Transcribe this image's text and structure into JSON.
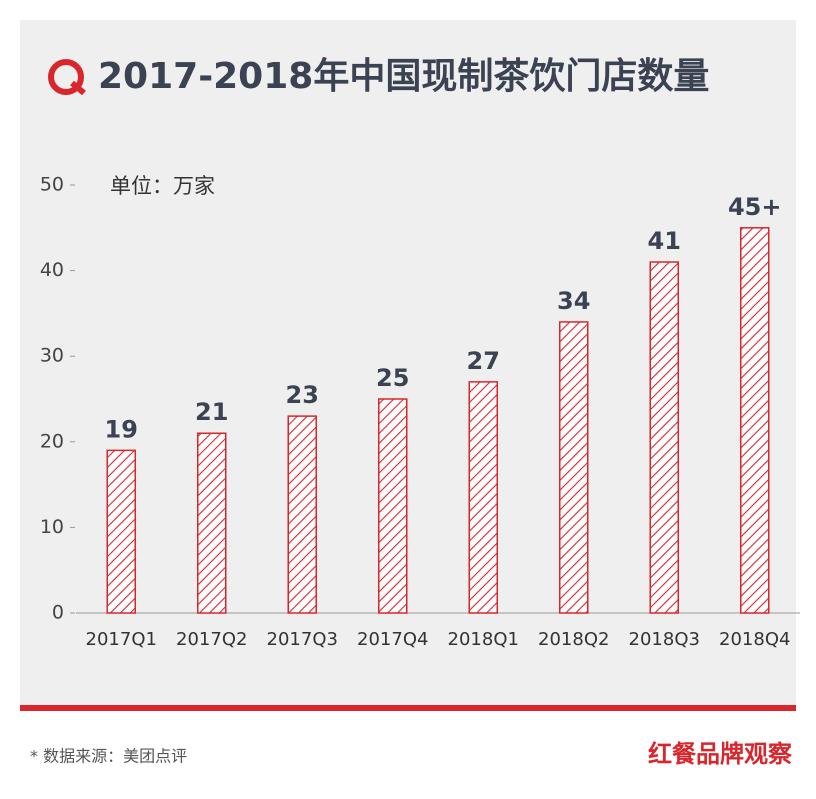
{
  "chart_data": {
    "type": "bar",
    "title": "2017-2018年中国现制茶饮门店数量",
    "unit_label": "单位：万家",
    "categories": [
      "2017Q1",
      "2017Q2",
      "2017Q3",
      "2017Q4",
      "2018Q1",
      "2018Q2",
      "2018Q3",
      "2018Q4"
    ],
    "values": [
      19,
      21,
      23,
      25,
      27,
      34,
      41,
      45
    ],
    "value_labels": [
      "19",
      "21",
      "23",
      "25",
      "27",
      "34",
      "41",
      "45+"
    ],
    "color": "#d9262c",
    "ylim": [
      0,
      50
    ],
    "yticks": [
      0,
      10,
      20,
      30,
      40,
      50
    ]
  },
  "footer": {
    "source": "* 数据来源：美团点评",
    "brand": "红餐品牌观察"
  }
}
